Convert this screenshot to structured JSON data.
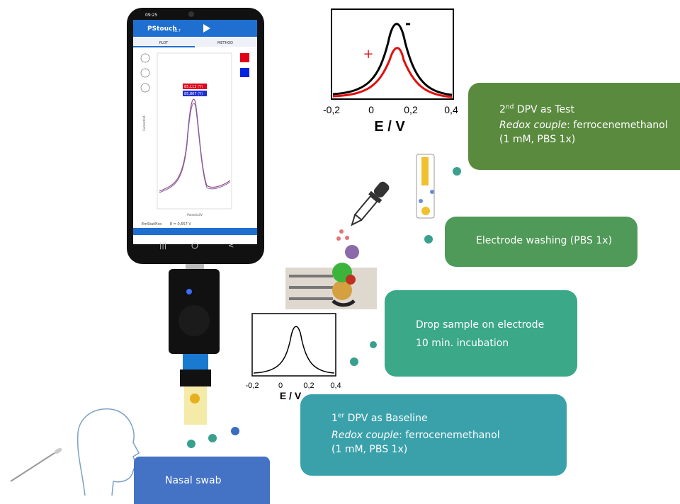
{
  "phone": {
    "time": "09:25",
    "app_name": "PStouch",
    "version": "v2.7",
    "tabs": [
      "PLOT",
      "METHOD"
    ],
    "readouts": [
      "85,112 (Y)",
      "85,867 (Y)"
    ],
    "y_axis": "Current/nA",
    "x_axis": "Potential/V",
    "status": [
      "EmStatPico",
      "E = 0,657 V"
    ]
  },
  "top_plot": {
    "xticks": [
      "-0,2",
      "0",
      "0,2",
      "0,4"
    ],
    "xlabel": "E / V",
    "markers": [
      "+",
      "-"
    ]
  },
  "bottom_plot": {
    "xticks": [
      "-0,2",
      "0",
      "0,2",
      "0,4"
    ],
    "xlabel": "E / V"
  },
  "steps": [
    {
      "title_num": "2",
      "title_sup": "nd",
      "title_rest": " DPV as Test",
      "italic": "Redox couple",
      "line1_rest": ": ferrocenemethanol",
      "line2": "(1 mM, PBS 1x)"
    },
    {
      "text": "Electrode washing (PBS 1x)"
    },
    {
      "line1": "Drop sample on electrode",
      "line2": "10 min. incubation"
    },
    {
      "title_num": "1",
      "title_sup": "er",
      "title_rest": " DPV as Baseline",
      "italic": "Redox couple",
      "line1_rest": ": ferrocenemethanol",
      "line2": "(1 mM, PBS 1x)"
    },
    {
      "text": "Nasal swab"
    }
  ]
}
